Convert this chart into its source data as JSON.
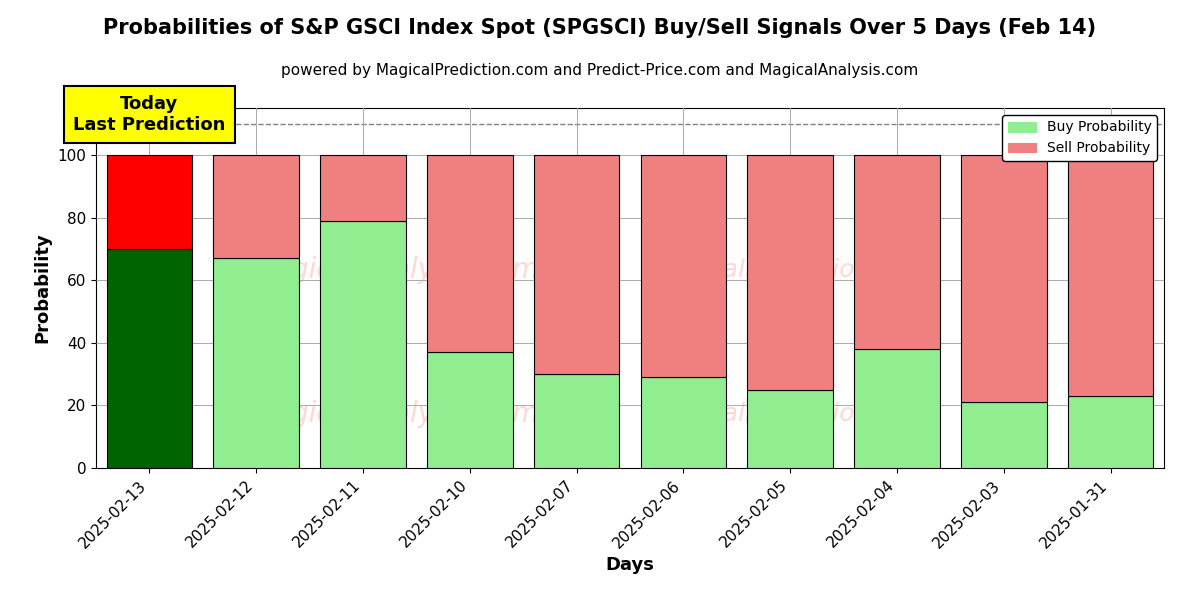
{
  "title": "Probabilities of S&P GSCI Index Spot (SPGSCI) Buy/Sell Signals Over 5 Days (Feb 14)",
  "subtitle": "powered by MagicalPrediction.com and Predict-Price.com and MagicalAnalysis.com",
  "xlabel": "Days",
  "ylabel": "Probability",
  "categories": [
    "2025-02-13",
    "2025-02-12",
    "2025-02-11",
    "2025-02-10",
    "2025-02-07",
    "2025-02-06",
    "2025-02-05",
    "2025-02-04",
    "2025-02-03",
    "2025-01-31"
  ],
  "buy_values": [
    70,
    67,
    79,
    37,
    30,
    29,
    25,
    38,
    21,
    23
  ],
  "sell_values": [
    30,
    33,
    21,
    63,
    70,
    71,
    75,
    62,
    79,
    77
  ],
  "today_buy_color": "#006400",
  "today_sell_color": "#FF0000",
  "buy_color": "#90EE90",
  "sell_color": "#F08080",
  "bar_edge_color": "#000000",
  "annotation_text": "Today\nLast Prediction",
  "annotation_bg": "#FFFF00",
  "dashed_line_y": 110,
  "ylim": [
    0,
    115
  ],
  "legend_buy": "Buy Probability",
  "legend_sell": "Sell Probability",
  "grid_color": "#AAAAAA",
  "title_fontsize": 15,
  "subtitle_fontsize": 11,
  "label_fontsize": 13,
  "tick_fontsize": 11,
  "bar_width": 0.8
}
